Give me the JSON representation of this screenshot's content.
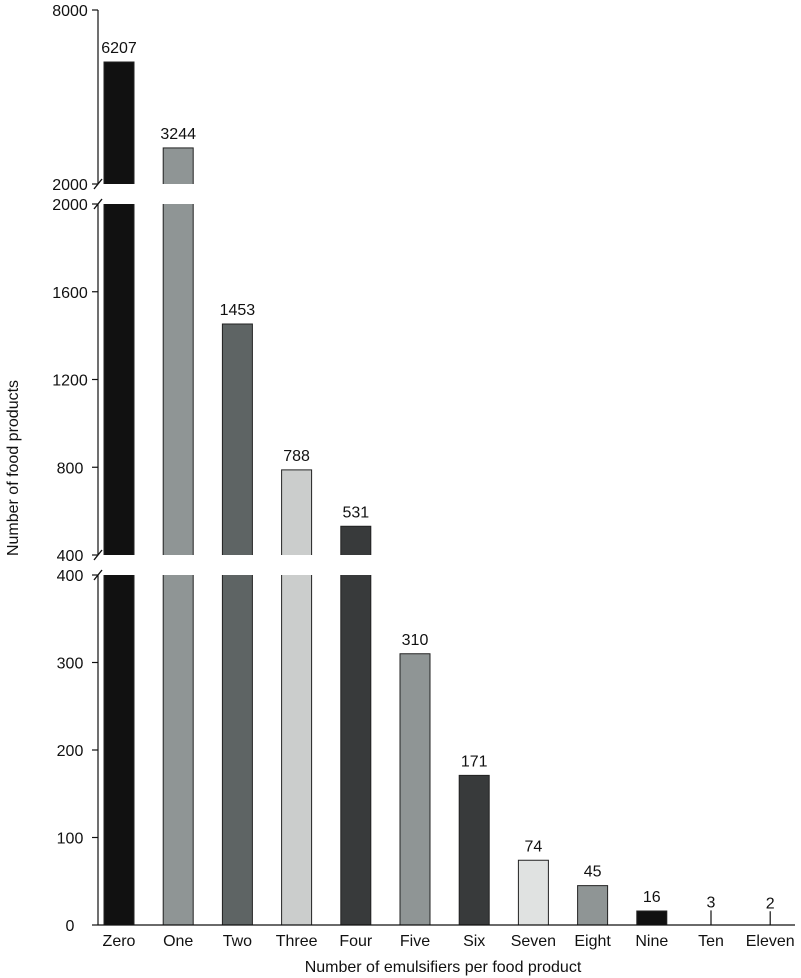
{
  "chart_data": {
    "type": "bar",
    "title": "",
    "xlabel": "Number of emulsifiers per food product",
    "ylabel": "Number of food products",
    "categories": [
      "Zero",
      "One",
      "Two",
      "Three",
      "Four",
      "Five",
      "Six",
      "Seven",
      "Eight",
      "Nine",
      "Ten",
      "Eleven"
    ],
    "values": [
      6207,
      3244,
      1453,
      788,
      531,
      310,
      171,
      74,
      45,
      16,
      3,
      2
    ],
    "value_labels": [
      "6207",
      "3244",
      "1453",
      "788",
      "531",
      "310",
      "171",
      "74",
      "45",
      "16",
      "3",
      "2"
    ],
    "bar_colors": [
      "#111111",
      "#8f9595",
      "#5e6464",
      "#cbcdcc",
      "#383a3b",
      "#8f9595",
      "#383a3b",
      "#e0e2e1",
      "#8f9595",
      "#111111",
      "#5e6464",
      "#cbcdcc"
    ],
    "y_axis_breaks": [
      {
        "range": [
          0,
          400
        ],
        "ticks": [
          0,
          100,
          200,
          300,
          400
        ]
      },
      {
        "range": [
          400,
          2000
        ],
        "ticks": [
          400,
          800,
          1200,
          1600,
          2000
        ]
      },
      {
        "range": [
          2000,
          8000
        ],
        "ticks": [
          2000,
          8000
        ]
      }
    ],
    "grid": false,
    "legend": "none"
  }
}
